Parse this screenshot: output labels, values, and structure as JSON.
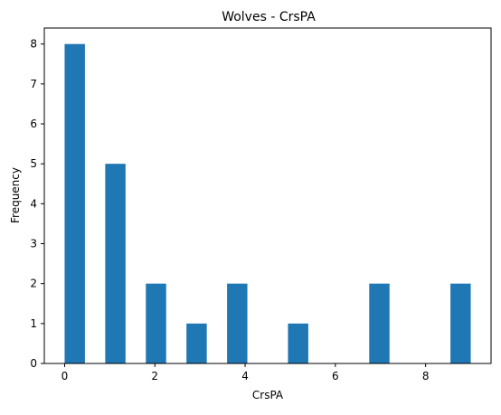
{
  "chart_data": {
    "type": "bar",
    "title": "Wolves - CrsPA",
    "xlabel": "CrsPA",
    "ylabel": "Frequency",
    "bar_color": "#1f77b4",
    "bin_width": 0.45,
    "bins": [
      {
        "x_start": 0.0,
        "value": 8
      },
      {
        "x_start": 0.9,
        "value": 5
      },
      {
        "x_start": 1.8,
        "value": 2
      },
      {
        "x_start": 2.7,
        "value": 1
      },
      {
        "x_start": 3.6,
        "value": 2
      },
      {
        "x_start": 4.95,
        "value": 1
      },
      {
        "x_start": 6.75,
        "value": 2
      },
      {
        "x_start": 8.55,
        "value": 2
      }
    ],
    "xlim": [
      -0.45,
      9.45
    ],
    "ylim": [
      0,
      8.4
    ],
    "xticks": [
      0,
      2,
      4,
      6,
      8
    ],
    "yticks": [
      0,
      1,
      2,
      3,
      4,
      5,
      6,
      7,
      8
    ],
    "grid": false
  }
}
